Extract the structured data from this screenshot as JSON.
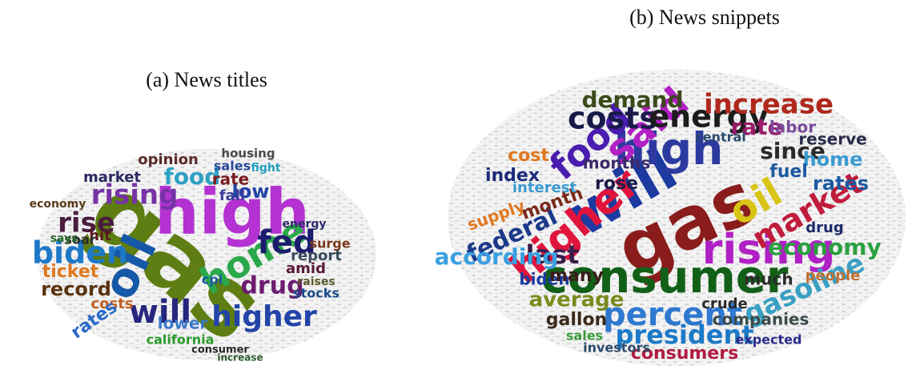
{
  "figure": {
    "panels": [
      {
        "caption": "(a) News titles",
        "words": [
          "gas",
          "high",
          "oil",
          "biden",
          "home",
          "fed",
          "rising",
          "food",
          "rise",
          "will",
          "higher",
          "drug",
          "ticket",
          "record",
          "low",
          "rate",
          "fall",
          "lower",
          "opinion",
          "costs",
          "market",
          "sales",
          "housing",
          "amid",
          "rates",
          "hit",
          "soar",
          "economy",
          "says",
          "report",
          "surge",
          "cpi",
          "stocks",
          "california",
          "consumer",
          "increase",
          "energy",
          "raises",
          "fight"
        ]
      },
      {
        "caption": "(b) News snippets",
        "words": [
          "gas",
          "will",
          "high",
          "higher",
          "consumer",
          "rising",
          "percent",
          "oil",
          "said",
          "food",
          "market",
          "costs",
          "energy",
          "increase",
          "rate",
          "gasoline",
          "president",
          "federal",
          "last",
          "according",
          "economy",
          "demand",
          "since",
          "home",
          "rates",
          "average",
          "gallon",
          "consumers",
          "companies",
          "index",
          "month",
          "cost",
          "rose",
          "fuel",
          "reserve",
          "biden",
          "many",
          "crude",
          "investors",
          "sales",
          "central",
          "months",
          "people",
          "labor",
          "drug",
          "supply",
          "interest",
          "much",
          "expected"
        ]
      }
    ]
  }
}
